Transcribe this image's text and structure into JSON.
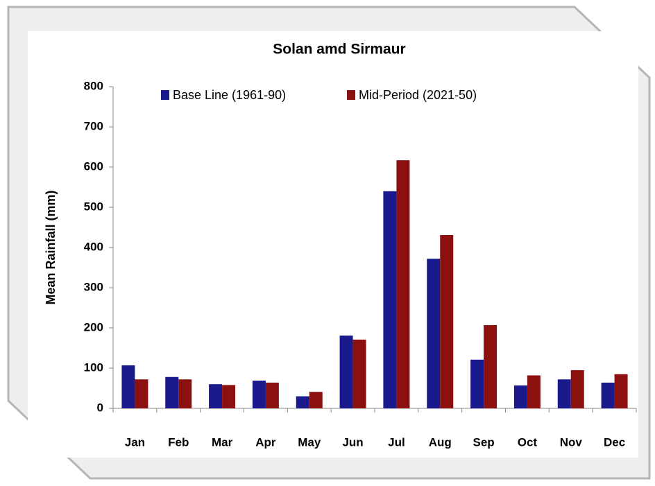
{
  "chart_data": {
    "type": "bar",
    "title": "Solan amd Sirmaur",
    "y_label": "Mean Rainfall (mm)",
    "categories": [
      "Jan",
      "Feb",
      "Mar",
      "Apr",
      "May",
      "Jun",
      "Jul",
      "Aug",
      "Sep",
      "Oct",
      "Nov",
      "Dec"
    ],
    "series": [
      {
        "name": "Base Line (1961-90)",
        "color": "#1a1a8c",
        "values": [
          107,
          78,
          60,
          69,
          30,
          181,
          540,
          372,
          121,
          57,
          72,
          64
        ]
      },
      {
        "name": "Mid-Period (2021-50)",
        "color": "#8b1010",
        "values": [
          72,
          72,
          58,
          64,
          41,
          171,
          617,
          431,
          207,
          82,
          95,
          85
        ]
      }
    ],
    "ylim": [
      0,
      800
    ],
    "yticks": [
      0,
      100,
      200,
      300,
      400,
      500,
      600,
      700,
      800
    ],
    "grid": false,
    "legend": "top"
  }
}
